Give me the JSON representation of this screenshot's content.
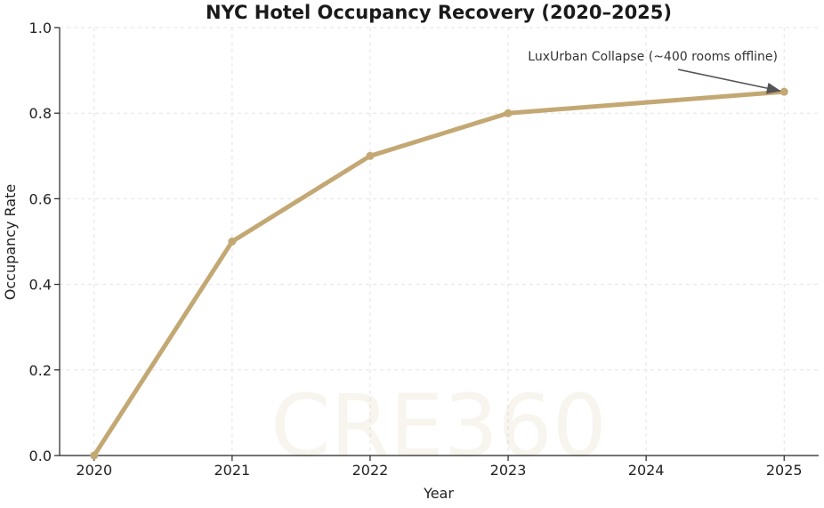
{
  "chart_data": {
    "type": "line",
    "title": "NYC Hotel Occupancy Recovery (2020–2025)",
    "xlabel": "Year",
    "ylabel": "Occupancy Rate",
    "x": [
      2020,
      2021,
      2022,
      2023,
      2024,
      2025
    ],
    "x_tick_labels": [
      "2020",
      "2021",
      "2022",
      "2023",
      "2024",
      "2025"
    ],
    "y_ticks": [
      0.0,
      0.2,
      0.4,
      0.6,
      0.8,
      1.0
    ],
    "y_tick_labels": [
      "0.0",
      "0.2",
      "0.4",
      "0.6",
      "0.8",
      "1.0"
    ],
    "xlim": [
      2019.75,
      2025.25
    ],
    "ylim": [
      0.0,
      1.0
    ],
    "grid": true,
    "series": [
      {
        "x": [
          2020,
          2021,
          2022,
          2023,
          2025
        ],
        "values": [
          0.0,
          0.5,
          0.7,
          0.8,
          0.85
        ],
        "color": "#c3a874"
      }
    ],
    "annotations": [
      {
        "text": "LuxUrban Collapse (~400 rooms offline)",
        "x": 2025,
        "y": 0.85,
        "color": "#555555"
      }
    ],
    "watermark": "CRE360"
  }
}
